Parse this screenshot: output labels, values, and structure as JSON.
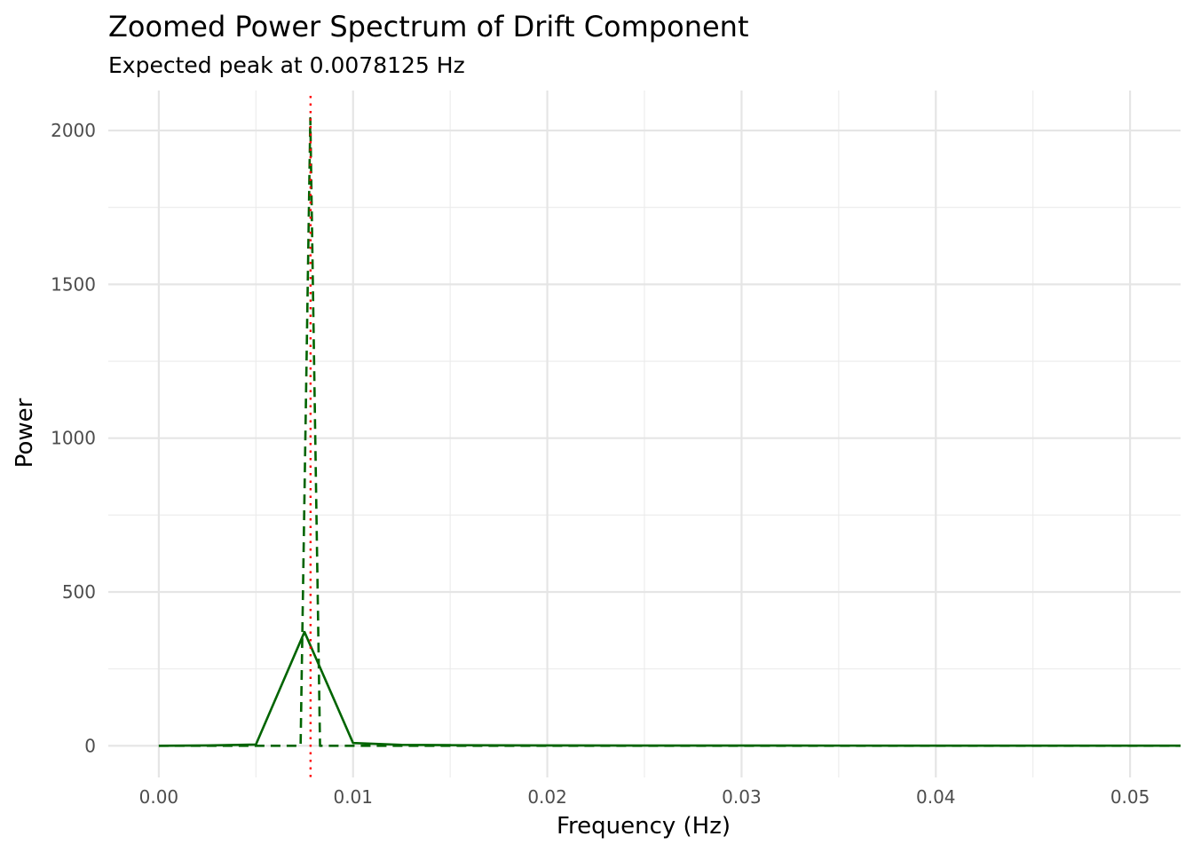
{
  "chart_data": {
    "type": "line",
    "title": "Zoomed Power Spectrum of Drift Component",
    "subtitle": "Expected peak at 0.0078125 Hz",
    "xlabel": "Frequency (Hz)",
    "ylabel": "Power",
    "xlim": [
      -0.0026,
      0.0526
    ],
    "ylim": [
      -103,
      2130
    ],
    "x_ticks": [
      0.0,
      0.01,
      0.02,
      0.03,
      0.04,
      0.05
    ],
    "x_tick_labels": [
      "0.00",
      "0.01",
      "0.02",
      "0.03",
      "0.04",
      "0.05"
    ],
    "y_ticks": [
      0,
      500,
      1000,
      1500,
      2000
    ],
    "y_tick_labels": [
      "0",
      "500",
      "1000",
      "1500",
      "2000"
    ],
    "grid": true,
    "legend": "none",
    "expected_peak_hz": 0.0078125,
    "series": [
      {
        "style": "solid",
        "color": "#006400",
        "x": [
          0.0,
          0.0025,
          0.005,
          0.0075,
          0.01,
          0.0125,
          0.015,
          0.0175,
          0.02,
          0.025,
          0.03,
          0.035,
          0.04,
          0.045,
          0.05,
          0.0526
        ],
        "y": [
          0,
          1,
          4,
          370,
          9,
          3,
          2,
          1.5,
          1,
          0.8,
          0.6,
          0.5,
          0.4,
          0.3,
          0.3,
          0.3
        ]
      },
      {
        "style": "dashed",
        "color": "#006400",
        "x": [
          0.0,
          0.0073,
          0.0078,
          0.0083,
          0.0526
        ],
        "y": [
          0,
          0,
          2040,
          0,
          0
        ]
      }
    ],
    "reference_lines": [
      {
        "orientation": "vertical",
        "x": 0.0078125,
        "style": "dotted",
        "color": "#ff0000"
      }
    ]
  }
}
